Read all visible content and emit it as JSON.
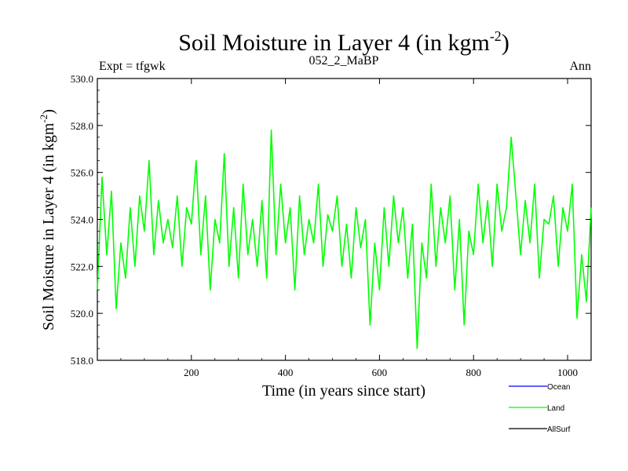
{
  "chart_data": {
    "type": "line",
    "title": "Soil Moisture in Layer 4 (in kgm",
    "title_sup": "-2",
    "title_close": ")",
    "subtitle_left": "Expt = tfgwk",
    "subtitle_center": "052_2_MaBP",
    "subtitle_right": "Ann",
    "xlabel": "Time (in years since start)",
    "ylabel": "Soil Moisture in Layer 4 (in kgm",
    "ylabel_sup": "-2",
    "ylabel_close": ")",
    "xlim": [
      0,
      1050
    ],
    "ylim": [
      518.0,
      530.0
    ],
    "xticks": [
      200,
      400,
      600,
      800,
      1000
    ],
    "yticks": [
      "518.0",
      "520.0",
      "522.0",
      "524.0",
      "526.0",
      "528.0",
      "530.0"
    ],
    "legend": [
      {
        "name": "Ocean",
        "color": "#0000ff"
      },
      {
        "name": "Land",
        "color": "#00ff00"
      },
      {
        "name": "AllSurf",
        "color": "#000000"
      }
    ],
    "series": [
      {
        "name": "Land",
        "color": "#00ff00",
        "x": [
          0,
          10,
          20,
          30,
          40,
          50,
          60,
          70,
          80,
          90,
          100,
          110,
          120,
          130,
          140,
          150,
          160,
          170,
          180,
          190,
          200,
          210,
          220,
          230,
          240,
          250,
          260,
          270,
          280,
          290,
          300,
          310,
          320,
          330,
          340,
          350,
          360,
          370,
          380,
          390,
          400,
          410,
          420,
          430,
          440,
          450,
          460,
          470,
          480,
          490,
          500,
          510,
          520,
          530,
          540,
          550,
          560,
          570,
          580,
          590,
          600,
          610,
          620,
          630,
          640,
          650,
          660,
          670,
          680,
          690,
          700,
          710,
          720,
          730,
          740,
          750,
          760,
          770,
          780,
          790,
          800,
          810,
          820,
          830,
          840,
          850,
          860,
          870,
          880,
          890,
          900,
          910,
          920,
          930,
          940,
          950,
          960,
          970,
          980,
          990,
          1000,
          1010,
          1020,
          1030,
          1040,
          1050
        ],
        "values": [
          521.0,
          525.8,
          522.5,
          525.2,
          520.2,
          523.0,
          521.5,
          524.5,
          522.0,
          525.0,
          523.5,
          526.5,
          522.5,
          524.8,
          523.0,
          524.0,
          522.8,
          525.0,
          522.0,
          524.5,
          523.8,
          526.5,
          522.5,
          525.0,
          521.0,
          524.0,
          523.0,
          526.8,
          522.0,
          524.5,
          521.5,
          525.5,
          522.5,
          524.0,
          522.0,
          524.8,
          521.5,
          527.8,
          522.5,
          525.5,
          523.0,
          524.5,
          521.0,
          525.0,
          522.5,
          524.0,
          523.0,
          525.5,
          522.0,
          524.2,
          523.5,
          525.0,
          522.0,
          523.8,
          521.5,
          524.5,
          522.8,
          524.0,
          519.5,
          523.0,
          521.0,
          524.5,
          522.0,
          525.0,
          523.0,
          524.5,
          521.5,
          523.8,
          518.5,
          523.0,
          521.5,
          525.5,
          522.0,
          524.5,
          523.0,
          525.0,
          521.0,
          524.0,
          519.5,
          523.5,
          522.5,
          525.5,
          523.0,
          524.8,
          522.0,
          525.5,
          523.5,
          524.5,
          527.5,
          525.0,
          522.5,
          524.8,
          523.0,
          525.5,
          521.5,
          524.0,
          523.8,
          525.0,
          522.0,
          524.5,
          523.5,
          525.5,
          519.8,
          522.5,
          520.5,
          524.5
        ]
      }
    ]
  }
}
